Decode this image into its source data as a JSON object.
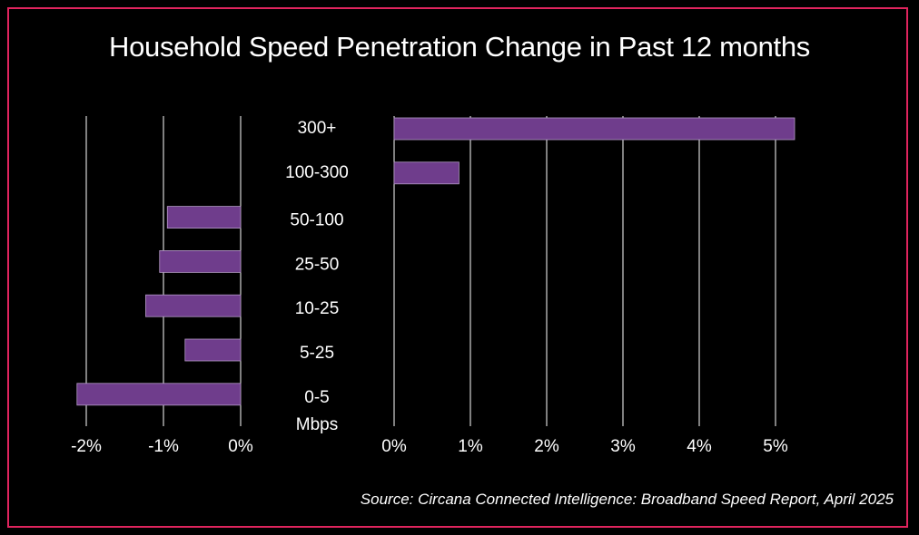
{
  "title": "Household Speed Penetration Change in Past 12 months",
  "source": "Source: Circana Connected Intelligence: Broadband Speed Report, April 2025",
  "colors": {
    "bar": "#6f3d8c",
    "frame": "#e0245e",
    "grid": "#ffffff",
    "text": "#ffffff"
  },
  "chart_data": {
    "type": "bar",
    "orientation": "horizontal",
    "category_axis_label": "Mbps",
    "categories": [
      "300+",
      "100-300",
      "50-100",
      "25-50",
      "10-25",
      "5-25",
      "0-5"
    ],
    "values": [
      5.25,
      0.85,
      -0.95,
      -1.05,
      -1.23,
      -0.72,
      -2.12
    ],
    "negative_panel": {
      "xlim": [
        -2,
        0
      ],
      "tick_labels": [
        "-2%",
        "-1%",
        "0%"
      ]
    },
    "positive_panel": {
      "xlim": [
        0,
        5
      ],
      "tick_labels": [
        "0%",
        "1%",
        "2%",
        "3%",
        "4%",
        "5%"
      ]
    },
    "grid": "vertical"
  }
}
